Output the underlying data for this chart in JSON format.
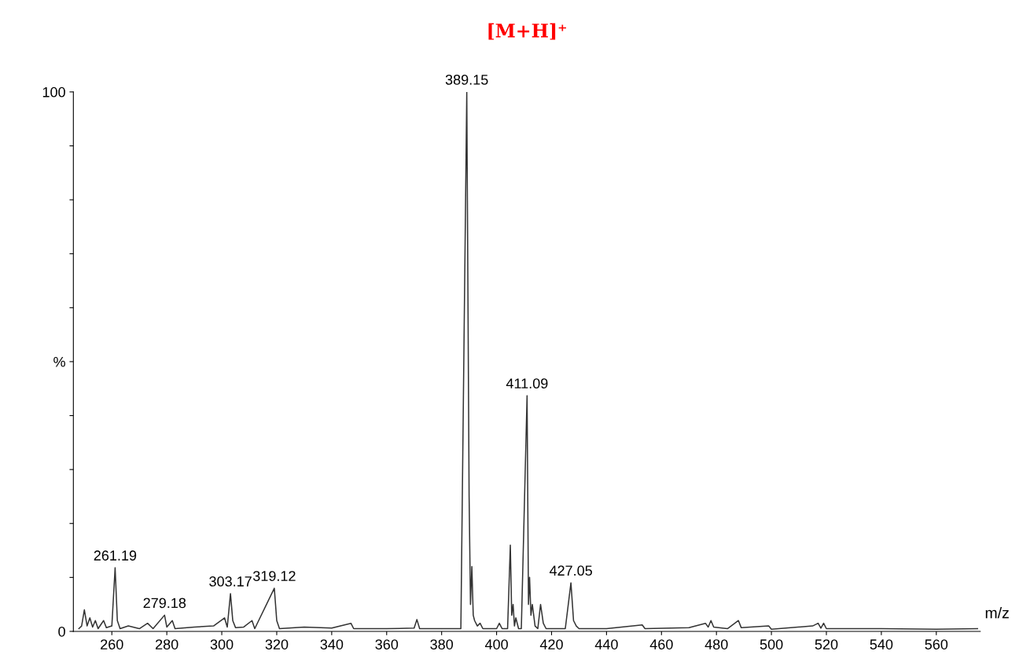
{
  "chart_data": {
    "type": "line",
    "title": "[M+H]⁺",
    "xlabel": "m/z",
    "ylabel": null,
    "x": [
      248,
      249,
      250,
      251,
      252,
      253,
      254,
      255,
      257,
      258,
      260,
      261.19,
      262,
      263,
      266,
      270,
      273,
      275,
      279.18,
      280,
      282,
      283,
      290,
      297,
      301,
      302,
      303.17,
      304,
      305,
      308,
      311,
      312,
      319.12,
      320,
      321,
      330,
      340,
      347,
      348,
      360,
      370,
      371,
      372,
      380,
      387,
      389.15,
      390,
      390.5,
      391,
      391.5,
      392,
      393,
      394,
      395,
      400,
      401,
      402,
      404,
      405,
      405.5,
      406,
      406.5,
      407,
      408,
      409,
      411.09,
      411.6,
      412,
      412.5,
      413,
      414,
      415,
      416,
      417,
      418,
      425,
      427.05,
      428,
      429,
      430,
      440,
      453,
      454,
      470,
      476,
      477,
      478,
      479,
      484,
      488,
      489,
      499,
      500,
      515,
      517,
      518,
      519,
      520,
      530,
      540,
      560,
      575
    ],
    "series": [
      {
        "color": "#333333",
        "values": [
          0.5,
          1,
          4,
          1,
          2.5,
          0.8,
          2,
          0.5,
          2,
          0.7,
          1,
          11.8,
          2,
          0.5,
          1,
          0.5,
          1.5,
          0.5,
          3,
          0.8,
          2,
          0.5,
          0.8,
          1,
          2.5,
          0.8,
          7,
          2,
          0.7,
          0.8,
          2,
          0.5,
          8,
          2,
          0.5,
          0.8,
          0.6,
          1.5,
          0.5,
          0.5,
          0.6,
          2.2,
          0.5,
          0.5,
          0.5,
          100,
          25,
          5,
          12,
          3,
          2,
          1,
          1.5,
          0.5,
          0.5,
          1.5,
          0.5,
          0.5,
          16,
          3,
          5,
          1,
          2.5,
          0.5,
          0.5,
          43.7,
          5,
          10,
          3,
          5,
          1,
          0.5,
          5,
          1.5,
          0.5,
          0.5,
          9,
          2,
          1,
          0.5,
          0.5,
          1.2,
          0.5,
          0.7,
          1.5,
          0.8,
          2,
          0.8,
          0.5,
          2,
          0.7,
          1,
          0.4,
          1,
          1.5,
          0.6,
          1.5,
          0.5,
          0.5,
          0.5,
          0.4,
          0.5
        ]
      }
    ],
    "xlim": [
      246,
      576
    ],
    "ylim": [
      0,
      100
    ],
    "xticks": [
      260,
      280,
      300,
      320,
      340,
      360,
      380,
      400,
      420,
      440,
      460,
      480,
      500,
      520,
      540,
      560
    ],
    "yticks": [
      0,
      {
        "value": 10,
        "label": null
      },
      {
        "value": 20,
        "label": null
      },
      {
        "value": 30,
        "label": null
      },
      {
        "value": 40,
        "label": null
      },
      {
        "value": 50,
        "label": "%"
      },
      {
        "value": 60,
        "label": null
      },
      {
        "value": 70,
        "label": null
      },
      {
        "value": 80,
        "label": null
      },
      {
        "value": 90,
        "label": null
      },
      100
    ],
    "annotations": [
      {
        "text": "261.19",
        "x": 261.19,
        "y": 11.8
      },
      {
        "text": "279.18",
        "x": 279.18,
        "y": 3
      },
      {
        "text": "303.17",
        "x": 303.17,
        "y": 7
      },
      {
        "text": "319.12",
        "x": 319.12,
        "y": 8
      },
      {
        "text": "389.15",
        "x": 389.15,
        "y": 100
      },
      {
        "text": "411.09",
        "x": 411.09,
        "y": 43.7
      },
      {
        "text": "427.05",
        "x": 427.05,
        "y": 9
      }
    ],
    "grid": false,
    "legend": false,
    "marker": "none",
    "line_style": "solid"
  }
}
